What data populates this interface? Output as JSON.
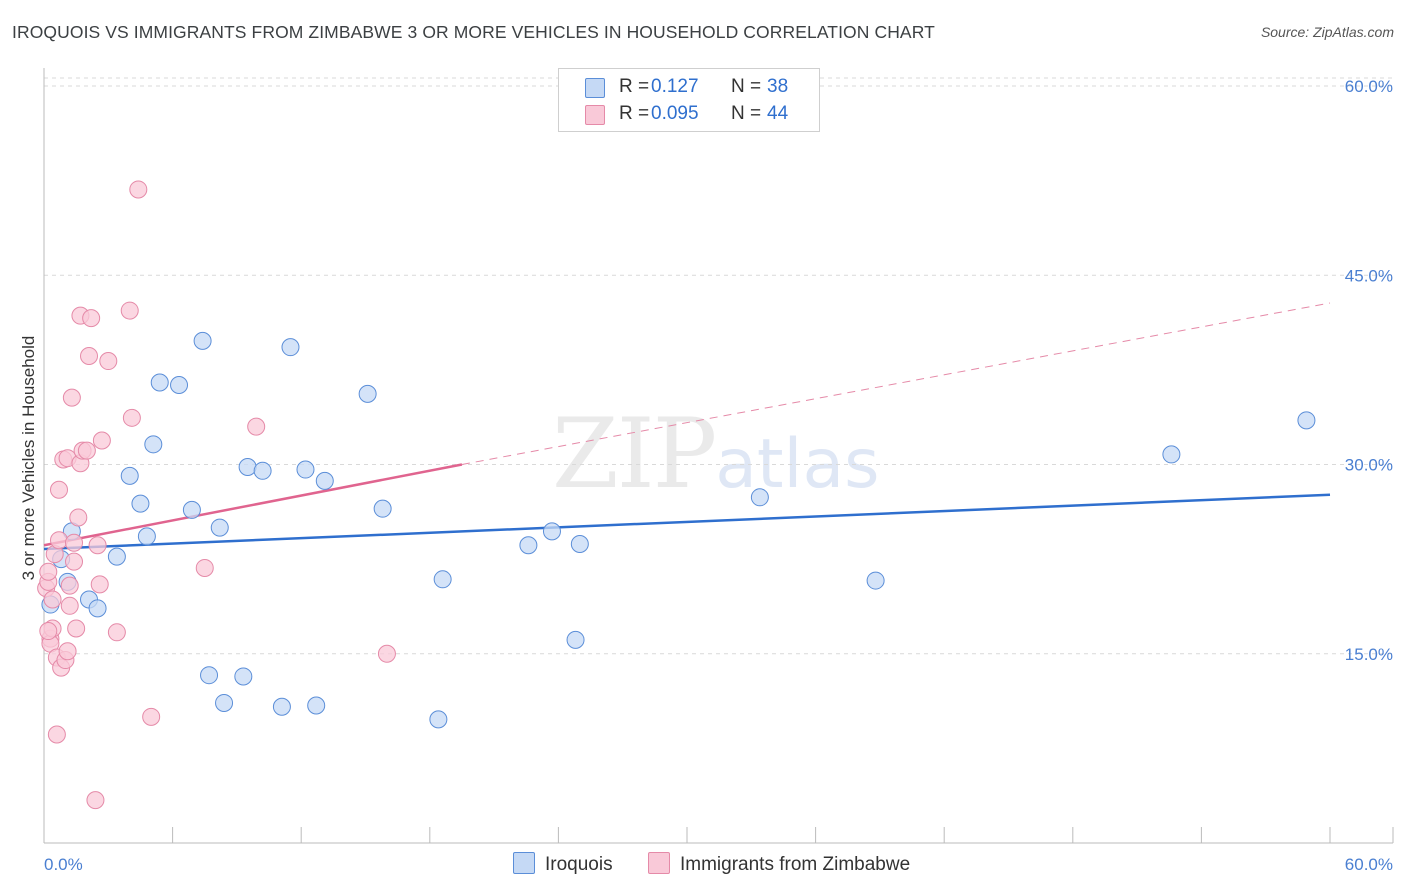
{
  "title": "IROQUOIS VS IMMIGRANTS FROM ZIMBABWE 3 OR MORE VEHICLES IN HOUSEHOLD CORRELATION CHART",
  "source": "Source: ZipAtlas.com",
  "watermark": {
    "zip": "ZIP",
    "atlas": "atlas"
  },
  "colors": {
    "blue": "#2f6fce",
    "blue_fill": "#c5d9f5",
    "blue_stroke": "#5b8ed8",
    "pink": "#e0648f",
    "pink_fill": "#f9c9d8",
    "pink_stroke": "#e58aa8",
    "grid": "#d9d9d9"
  },
  "legend": {
    "rows": [
      {
        "r_label": "R =",
        "r_value": "0.127",
        "n_label": "N =",
        "n_value": "38"
      },
      {
        "r_label": "R =",
        "r_value": "0.095",
        "n_label": "N =",
        "n_value": "44"
      }
    ]
  },
  "bottom_legend": {
    "iroquois": "Iroquois",
    "zimbabwe": "Immigrants from Zimbabwe"
  },
  "chart_data": {
    "type": "scatter",
    "title": "IROQUOIS VS IMMIGRANTS FROM ZIMBABWE 3 OR MORE VEHICLES IN HOUSEHOLD CORRELATION CHART",
    "xlabel": "",
    "ylabel": "3 or more Vehicles in Household",
    "xlim": [
      0,
      60
    ],
    "ylim": [
      0,
      60
    ],
    "x_tick_labels": [
      "0.0%",
      "60.0%"
    ],
    "y_ticks": [
      15,
      30,
      45,
      60
    ],
    "y_tick_labels": [
      "15.0%",
      "30.0%",
      "45.0%",
      "60.0%"
    ],
    "series": [
      {
        "name": "Iroquois",
        "color": "#2f6fce",
        "points": [
          [
            0.3,
            18.9
          ],
          [
            0.8,
            22.5
          ],
          [
            1.1,
            20.7
          ],
          [
            1.3,
            24.7
          ],
          [
            2.1,
            19.3
          ],
          [
            2.5,
            18.6
          ],
          [
            3.4,
            22.7
          ],
          [
            4.0,
            29.1
          ],
          [
            4.5,
            26.9
          ],
          [
            4.8,
            24.3
          ],
          [
            5.1,
            31.6
          ],
          [
            5.4,
            36.5
          ],
          [
            6.3,
            36.3
          ],
          [
            6.9,
            26.4
          ],
          [
            7.4,
            39.8
          ],
          [
            7.7,
            13.3
          ],
          [
            8.2,
            25.0
          ],
          [
            8.4,
            11.1
          ],
          [
            9.3,
            13.2
          ],
          [
            9.5,
            29.8
          ],
          [
            10.2,
            29.5
          ],
          [
            11.1,
            10.8
          ],
          [
            11.5,
            39.3
          ],
          [
            12.2,
            29.6
          ],
          [
            12.7,
            10.9
          ],
          [
            13.1,
            28.7
          ],
          [
            15.1,
            35.6
          ],
          [
            15.8,
            26.5
          ],
          [
            18.4,
            9.8
          ],
          [
            18.6,
            20.9
          ],
          [
            22.6,
            23.6
          ],
          [
            23.7,
            24.7
          ],
          [
            24.8,
            16.1
          ],
          [
            25.0,
            23.7
          ],
          [
            33.4,
            27.4
          ],
          [
            38.8,
            20.8
          ],
          [
            52.6,
            30.8
          ],
          [
            58.9,
            33.5
          ]
        ],
        "trend": {
          "x0": 0,
          "y0": 23.3,
          "x1": 60,
          "y1": 27.6
        }
      },
      {
        "name": "Immigrants from Zimbabwe",
        "color": "#e0648f",
        "points": [
          [
            0.1,
            20.2
          ],
          [
            0.2,
            20.7
          ],
          [
            0.2,
            21.5
          ],
          [
            0.3,
            16.2
          ],
          [
            0.3,
            15.8
          ],
          [
            0.4,
            19.3
          ],
          [
            0.4,
            17.0
          ],
          [
            0.5,
            22.9
          ],
          [
            0.6,
            14.7
          ],
          [
            0.6,
            8.6
          ],
          [
            0.7,
            24.0
          ],
          [
            0.7,
            28.0
          ],
          [
            0.8,
            13.9
          ],
          [
            0.9,
            30.4
          ],
          [
            1.0,
            14.5
          ],
          [
            1.1,
            30.5
          ],
          [
            1.1,
            15.2
          ],
          [
            1.2,
            20.4
          ],
          [
            1.2,
            18.8
          ],
          [
            1.3,
            35.3
          ],
          [
            1.4,
            23.8
          ],
          [
            1.4,
            22.3
          ],
          [
            1.5,
            17.0
          ],
          [
            1.6,
            25.8
          ],
          [
            1.7,
            41.8
          ],
          [
            1.7,
            30.1
          ],
          [
            1.8,
            31.1
          ],
          [
            2.0,
            31.1
          ],
          [
            2.1,
            38.6
          ],
          [
            2.2,
            41.6
          ],
          [
            2.4,
            3.4
          ],
          [
            2.5,
            23.6
          ],
          [
            2.6,
            20.5
          ],
          [
            2.7,
            31.9
          ],
          [
            3.0,
            38.2
          ],
          [
            3.4,
            16.7
          ],
          [
            4.0,
            42.2
          ],
          [
            4.1,
            33.7
          ],
          [
            4.4,
            51.8
          ],
          [
            5.0,
            10.0
          ],
          [
            7.5,
            21.8
          ],
          [
            9.9,
            33.0
          ],
          [
            16.0,
            15.0
          ],
          [
            0.2,
            16.8
          ]
        ],
        "trend": {
          "x0": 0,
          "y0": 23.6,
          "x1": 19.5,
          "y1": 30.0
        },
        "trend_extension": {
          "x0": 19.5,
          "y0": 30.0,
          "x1": 60,
          "y1": 42.8
        }
      }
    ]
  }
}
